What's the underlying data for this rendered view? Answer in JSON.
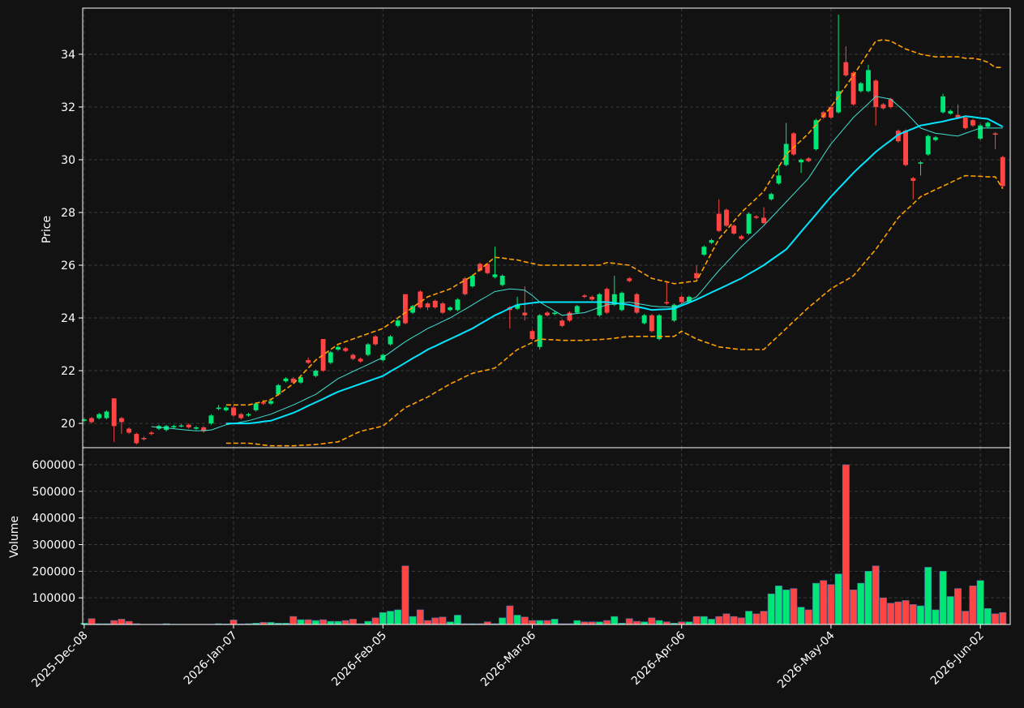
{
  "chart_data": {
    "type": "candlestick",
    "categories": [
      "2025-Dec-08",
      null,
      null,
      null,
      null,
      null,
      null,
      null,
      null,
      null,
      null,
      null,
      null,
      null,
      null,
      null,
      null,
      null,
      null,
      null,
      "2026-Jan-07",
      null,
      null,
      null,
      null,
      null,
      null,
      null,
      null,
      null,
      null,
      null,
      null,
      null,
      null,
      null,
      null,
      null,
      null,
      null,
      "2026-Feb-05",
      null,
      null,
      null,
      null,
      null,
      null,
      null,
      null,
      null,
      null,
      null,
      null,
      null,
      null,
      null,
      null,
      null,
      null,
      null,
      "2026-Mar-06",
      null,
      null,
      null,
      null,
      null,
      null,
      null,
      null,
      null,
      null,
      null,
      null,
      null,
      null,
      null,
      null,
      null,
      null,
      null,
      "2026-Apr-06",
      null,
      null,
      null,
      null,
      null,
      null,
      null,
      null,
      null,
      null,
      null,
      null,
      null,
      null,
      null,
      null,
      null,
      null,
      null,
      "2026-May-04",
      null,
      null,
      null,
      null,
      null,
      null,
      null,
      null,
      null,
      null,
      null,
      null,
      null,
      null,
      null,
      null,
      null,
      null,
      null,
      "2026-Jun-02",
      null,
      null,
      null
    ],
    "open": [
      20.1,
      20.2,
      20.2,
      20.2,
      20.95,
      20.2,
      19.8,
      19.6,
      19.45,
      19.65,
      19.8,
      19.75,
      19.85,
      19.88,
      19.95,
      19.8,
      19.85,
      20.0,
      20.55,
      20.5,
      20.6,
      20.35,
      20.3,
      20.5,
      20.8,
      20.75,
      21.1,
      21.6,
      21.7,
      21.55,
      22.4,
      21.8,
      23.2,
      22.3,
      22.8,
      22.85,
      22.6,
      22.45,
      22.6,
      23.3,
      22.4,
      23.0,
      23.7,
      24.9,
      24.2,
      25.0,
      24.55,
      24.65,
      24.55,
      24.3,
      24.3,
      25.5,
      25.2,
      26.05,
      26.05,
      25.55,
      25.25,
      24.4,
      24.35,
      24.2,
      23.5,
      22.9,
      24.2,
      24.15,
      23.9,
      24.2,
      24.2,
      24.85,
      24.8,
      24.1,
      25.1,
      24.5,
      24.3,
      25.5,
      24.9,
      23.8,
      24.1,
      23.2,
      24.6,
      23.9,
      24.8,
      24.6,
      25.7,
      26.4,
      26.85,
      27.95,
      28.1,
      27.5,
      27.1,
      27.2,
      27.85,
      27.8,
      28.5,
      29.1,
      29.8,
      31.0,
      29.9,
      30.05,
      30.4,
      31.8,
      32.0,
      31.8,
      33.7,
      33.3,
      32.6,
      32.6,
      33.0,
      32.1,
      32.3,
      31.1,
      31.1,
      29.3,
      29.85,
      30.2,
      30.75,
      31.8,
      31.75,
      31.7,
      31.6,
      31.5,
      30.8,
      31.25,
      31.0,
      30.1
    ],
    "high": [
      20.2,
      20.25,
      20.4,
      20.5,
      20.95,
      20.25,
      19.85,
      19.65,
      19.5,
      19.7,
      19.95,
      19.95,
      19.95,
      19.97,
      20.0,
      19.9,
      19.9,
      20.35,
      20.7,
      20.65,
      20.65,
      20.4,
      20.4,
      20.8,
      20.9,
      20.95,
      21.5,
      21.75,
      21.75,
      21.8,
      22.5,
      22.05,
      23.2,
      22.75,
      22.95,
      22.9,
      22.65,
      22.5,
      23.05,
      23.35,
      22.65,
      23.35,
      23.95,
      24.9,
      24.5,
      25.05,
      24.6,
      24.7,
      24.6,
      24.45,
      24.75,
      25.55,
      25.65,
      26.1,
      26.1,
      26.7,
      25.65,
      24.45,
      24.8,
      25.2,
      23.55,
      24.15,
      24.25,
      24.25,
      23.95,
      24.25,
      24.5,
      24.9,
      24.85,
      24.95,
      25.15,
      25.6,
      25.0,
      25.55,
      24.95,
      24.15,
      24.15,
      24.15,
      25.4,
      24.55,
      24.85,
      24.85,
      26.0,
      26.75,
      27.0,
      28.5,
      28.15,
      27.55,
      27.15,
      28.0,
      27.9,
      28.2,
      28.75,
      29.8,
      31.4,
      31.05,
      30.05,
      30.1,
      31.55,
      31.85,
      32.05,
      35.5,
      34.3,
      33.35,
      32.95,
      33.6,
      33.05,
      32.15,
      32.35,
      31.15,
      31.15,
      29.35,
      29.95,
      30.95,
      30.9,
      32.5,
      31.9,
      32.1,
      31.65,
      31.55,
      31.35,
      31.45,
      31.05,
      30.15
    ],
    "low": [
      20.05,
      20.0,
      20.15,
      20.15,
      19.3,
      19.6,
      19.6,
      19.2,
      19.35,
      19.55,
      19.75,
      19.7,
      19.8,
      19.85,
      19.8,
      19.75,
      19.65,
      19.95,
      20.5,
      20.45,
      20.25,
      20.15,
      20.25,
      20.45,
      20.7,
      20.7,
      21.05,
      21.55,
      21.5,
      21.5,
      22.25,
      21.75,
      21.95,
      22.25,
      22.75,
      22.7,
      22.4,
      22.3,
      22.55,
      22.95,
      22.35,
      22.95,
      23.65,
      23.75,
      24.15,
      24.35,
      24.3,
      24.35,
      24.15,
      24.25,
      24.25,
      24.85,
      25.15,
      25.75,
      25.65,
      25.5,
      25.2,
      23.6,
      24.3,
      23.9,
      23.15,
      22.8,
      24.05,
      24.1,
      23.65,
      23.85,
      24.15,
      24.75,
      24.65,
      24.05,
      24.15,
      24.45,
      24.25,
      25.35,
      24.15,
      23.75,
      23.45,
      23.15,
      24.5,
      23.85,
      24.55,
      24.55,
      25.45,
      26.35,
      26.8,
      27.25,
      27.45,
      27.15,
      26.95,
      27.15,
      27.75,
      27.55,
      28.45,
      29.05,
      29.75,
      30.15,
      29.5,
      29.9,
      30.35,
      31.55,
      31.55,
      31.75,
      33.15,
      32.05,
      32.55,
      32.55,
      31.3,
      31.9,
      31.95,
      30.65,
      29.75,
      28.5,
      29.4,
      30.15,
      30.7,
      31.75,
      31.7,
      31.55,
      31.15,
      31.25,
      30.75,
      31.2,
      30.4,
      28.95
    ],
    "close": [
      20.15,
      20.05,
      20.35,
      20.45,
      19.9,
      20.05,
      19.65,
      19.25,
      19.4,
      19.6,
      19.9,
      19.9,
      19.9,
      19.92,
      19.85,
      19.85,
      19.7,
      20.3,
      20.6,
      20.6,
      20.3,
      20.2,
      20.35,
      20.75,
      20.75,
      20.85,
      21.45,
      21.7,
      21.55,
      21.75,
      22.3,
      22.0,
      22.0,
      22.7,
      22.9,
      22.75,
      22.45,
      22.35,
      23.0,
      23.0,
      22.6,
      23.3,
      23.9,
      23.8,
      24.45,
      24.4,
      24.4,
      24.4,
      24.2,
      24.4,
      24.7,
      24.9,
      25.6,
      25.8,
      25.7,
      25.65,
      25.6,
      24.3,
      24.5,
      24.1,
      23.2,
      24.1,
      24.1,
      24.2,
      23.7,
      23.9,
      24.45,
      24.8,
      24.7,
      24.9,
      24.2,
      24.9,
      24.95,
      25.4,
      24.2,
      24.1,
      23.5,
      24.1,
      24.55,
      24.5,
      24.6,
      24.8,
      25.5,
      26.7,
      26.95,
      27.3,
      27.5,
      27.2,
      27.0,
      27.95,
      27.8,
      27.6,
      28.7,
      29.4,
      30.6,
      30.2,
      30.0,
      29.95,
      31.5,
      31.6,
      31.6,
      32.6,
      33.2,
      32.1,
      32.9,
      33.4,
      32.0,
      31.95,
      32.0,
      30.7,
      29.8,
      29.2,
      29.9,
      30.9,
      30.85,
      32.4,
      31.85,
      31.6,
      31.2,
      31.3,
      31.3,
      31.4,
      30.95,
      29.0
    ],
    "volume": [
      5000,
      22000,
      3000,
      3000,
      15000,
      20000,
      12000,
      3000,
      1000,
      1000,
      1000,
      3000,
      1000,
      1000,
      1000,
      1000,
      1000,
      1000,
      3000,
      2000,
      17000,
      2000,
      3000,
      5000,
      8000,
      8000,
      5000,
      5000,
      30000,
      18000,
      18000,
      15000,
      18000,
      12000,
      12000,
      15000,
      20000,
      3000,
      12000,
      25000,
      45000,
      50000,
      55000,
      220000,
      30000,
      55000,
      15000,
      25000,
      28000,
      10000,
      35000,
      3000,
      3000,
      3000,
      10000,
      3000,
      25000,
      70000,
      35000,
      28000,
      15000,
      15000,
      15000,
      20000,
      3000,
      3000,
      15000,
      10000,
      10000,
      10000,
      15000,
      30000,
      5000,
      22000,
      12000,
      10000,
      25000,
      15000,
      10000,
      5000,
      10000,
      10000,
      30000,
      30000,
      20000,
      30000,
      40000,
      30000,
      25000,
      50000,
      40000,
      50000,
      115000,
      145000,
      130000,
      135000,
      65000,
      55000,
      155000,
      165000,
      150000,
      190000,
      600000,
      130000,
      155000,
      200000,
      220000,
      100000,
      80000,
      85000,
      90000,
      75000,
      70000,
      215000,
      55000,
      200000,
      105000,
      135000,
      50000,
      145000,
      165000,
      60000,
      40000,
      45000
    ],
    "overlays": [
      {
        "color": "#40e0d0",
        "width": 1,
        "dashed": false,
        "values": [
          null,
          null,
          null,
          null,
          null,
          null,
          null,
          null,
          null,
          19.88,
          19.85,
          19.83,
          19.8,
          19.77,
          19.74,
          19.72,
          19.73,
          19.75,
          19.85,
          19.95,
          20.0,
          20.05,
          20.1,
          20.18,
          20.27,
          20.35,
          20.47,
          20.58,
          20.7,
          20.83,
          20.97,
          21.1,
          21.3,
          21.5,
          21.7,
          21.83,
          21.97,
          22.1,
          22.23,
          22.37,
          22.5,
          22.7,
          22.9,
          23.1,
          23.27,
          23.43,
          23.6,
          23.73,
          23.87,
          24.0,
          24.17,
          24.33,
          24.5,
          24.67,
          24.83,
          25.0,
          25.05,
          25.1,
          25.08,
          25.05,
          24.85,
          24.6,
          24.43,
          24.27,
          24.1,
          24.13,
          24.17,
          24.2,
          24.3,
          24.4,
          24.5,
          24.53,
          24.57,
          24.6,
          24.55,
          24.5,
          24.45,
          24.43,
          24.42,
          24.4,
          24.53,
          24.67,
          24.8,
          25.13,
          25.47,
          25.8,
          26.1,
          26.4,
          26.7,
          26.97,
          27.23,
          27.5,
          27.8,
          28.1,
          28.4,
          28.7,
          29.0,
          29.3,
          29.73,
          30.17,
          30.6,
          30.93,
          31.27,
          31.6,
          31.87,
          32.13,
          32.4,
          32.35,
          32.3,
          32.05,
          31.8,
          31.5,
          31.2,
          31.1,
          31.0,
          30.97,
          30.93,
          30.9,
          31.0,
          31.1,
          31.2,
          31.2,
          31.2,
          31.2
        ]
      },
      {
        "color": "#00e5ff",
        "width": 2,
        "dashed": false,
        "values": [
          null,
          null,
          null,
          null,
          null,
          null,
          null,
          null,
          null,
          null,
          null,
          null,
          null,
          null,
          null,
          null,
          null,
          null,
          null,
          20.0,
          20.0,
          20.0,
          20.0,
          20.03,
          20.07,
          20.1,
          20.2,
          20.3,
          20.4,
          20.53,
          20.67,
          20.8,
          20.93,
          21.07,
          21.2,
          21.3,
          21.4,
          21.5,
          21.6,
          21.7,
          21.8,
          21.97,
          22.13,
          22.3,
          22.47,
          22.63,
          22.8,
          22.93,
          23.07,
          23.2,
          23.33,
          23.47,
          23.6,
          23.77,
          23.93,
          24.1,
          24.23,
          24.37,
          24.5,
          24.53,
          24.57,
          24.6,
          24.6,
          24.6,
          24.6,
          24.6,
          24.6,
          24.6,
          24.6,
          24.6,
          24.6,
          24.57,
          24.53,
          24.5,
          24.43,
          24.37,
          24.3,
          24.32,
          24.33,
          24.35,
          24.47,
          24.58,
          24.7,
          24.83,
          24.97,
          25.1,
          25.23,
          25.37,
          25.5,
          25.67,
          25.83,
          26.0,
          26.2,
          26.4,
          26.6,
          26.93,
          27.27,
          27.6,
          27.93,
          28.27,
          28.6,
          28.9,
          29.2,
          29.5,
          29.77,
          30.03,
          30.3,
          30.52,
          30.73,
          30.95,
          31.07,
          31.18,
          31.3,
          31.35,
          31.4,
          31.45,
          31.52,
          31.58,
          31.65,
          31.62,
          31.58,
          31.55,
          31.4,
          31.25
        ]
      },
      {
        "color": "#ffa000",
        "width": 1.6,
        "dashed": true,
        "values": [
          null,
          null,
          null,
          null,
          null,
          null,
          null,
          null,
          null,
          null,
          null,
          null,
          null,
          null,
          null,
          null,
          null,
          null,
          null,
          20.7,
          20.7,
          20.7,
          20.7,
          20.77,
          20.83,
          20.9,
          21.1,
          21.3,
          21.5,
          21.8,
          22.1,
          22.4,
          22.6,
          22.8,
          23.0,
          23.1,
          23.2,
          23.3,
          23.4,
          23.5,
          23.6,
          23.8,
          24.0,
          24.2,
          24.4,
          24.6,
          24.8,
          24.9,
          25.0,
          25.1,
          25.27,
          25.43,
          25.6,
          25.83,
          26.07,
          26.3,
          26.27,
          26.23,
          26.2,
          26.13,
          26.07,
          26.0,
          26.0,
          26.0,
          26.0,
          26.0,
          26.0,
          26.0,
          26.0,
          26.0,
          26.1,
          26.07,
          26.03,
          26.0,
          25.83,
          25.67,
          25.5,
          25.43,
          25.37,
          25.3,
          25.33,
          25.37,
          25.4,
          25.93,
          26.47,
          27.0,
          27.33,
          27.67,
          28.0,
          28.27,
          28.53,
          28.8,
          29.27,
          29.73,
          30.2,
          30.47,
          30.73,
          31.0,
          31.33,
          31.67,
          32.0,
          32.4,
          32.8,
          33.2,
          33.63,
          34.07,
          34.5,
          34.55,
          34.5,
          34.35,
          34.2,
          34.1,
          34.0,
          33.95,
          33.9,
          33.9,
          33.9,
          33.9,
          33.85,
          33.85,
          33.8,
          33.7,
          33.5,
          33.5
        ]
      },
      {
        "color": "#ffa000",
        "width": 1.6,
        "dashed": true,
        "values": [
          null,
          null,
          null,
          null,
          null,
          null,
          null,
          null,
          null,
          null,
          null,
          null,
          null,
          null,
          null,
          null,
          null,
          null,
          null,
          19.25,
          19.25,
          19.25,
          19.25,
          19.22,
          19.18,
          19.15,
          19.15,
          19.15,
          19.15,
          19.17,
          19.18,
          19.2,
          19.23,
          19.27,
          19.3,
          19.43,
          19.57,
          19.7,
          19.77,
          19.83,
          19.9,
          20.13,
          20.37,
          20.6,
          20.73,
          20.87,
          21.0,
          21.17,
          21.33,
          21.5,
          21.63,
          21.77,
          21.9,
          21.97,
          22.03,
          22.1,
          22.33,
          22.57,
          22.8,
          22.93,
          23.07,
          23.2,
          23.18,
          23.17,
          23.15,
          23.15,
          23.15,
          23.15,
          23.17,
          23.18,
          23.2,
          23.23,
          23.27,
          23.3,
          23.3,
          23.3,
          23.3,
          23.3,
          23.3,
          23.3,
          23.5,
          23.35,
          23.2,
          23.1,
          23.0,
          22.9,
          22.87,
          22.83,
          22.8,
          22.8,
          22.8,
          22.8,
          23.07,
          23.33,
          23.6,
          23.87,
          24.13,
          24.4,
          24.63,
          24.87,
          25.1,
          25.27,
          25.43,
          25.6,
          25.93,
          26.27,
          26.6,
          27.0,
          27.4,
          27.8,
          28.07,
          28.33,
          28.6,
          28.73,
          28.87,
          29.0,
          29.13,
          29.27,
          29.4,
          29.38,
          29.37,
          29.35,
          29.35,
          28.9
        ]
      }
    ],
    "up_color": "#00e676",
    "down_color": "#ff4444",
    "ylabel": "Price",
    "ylim": [
      19.08,
      35.75
    ],
    "yticks": [
      20,
      22,
      24,
      26,
      28,
      30,
      32,
      34
    ],
    "volume_ylabel": "Volume",
    "volume_ylim": [
      0,
      664000
    ],
    "volume_yticks": [
      100000,
      200000,
      300000,
      400000,
      500000,
      600000
    ],
    "grid": true
  }
}
